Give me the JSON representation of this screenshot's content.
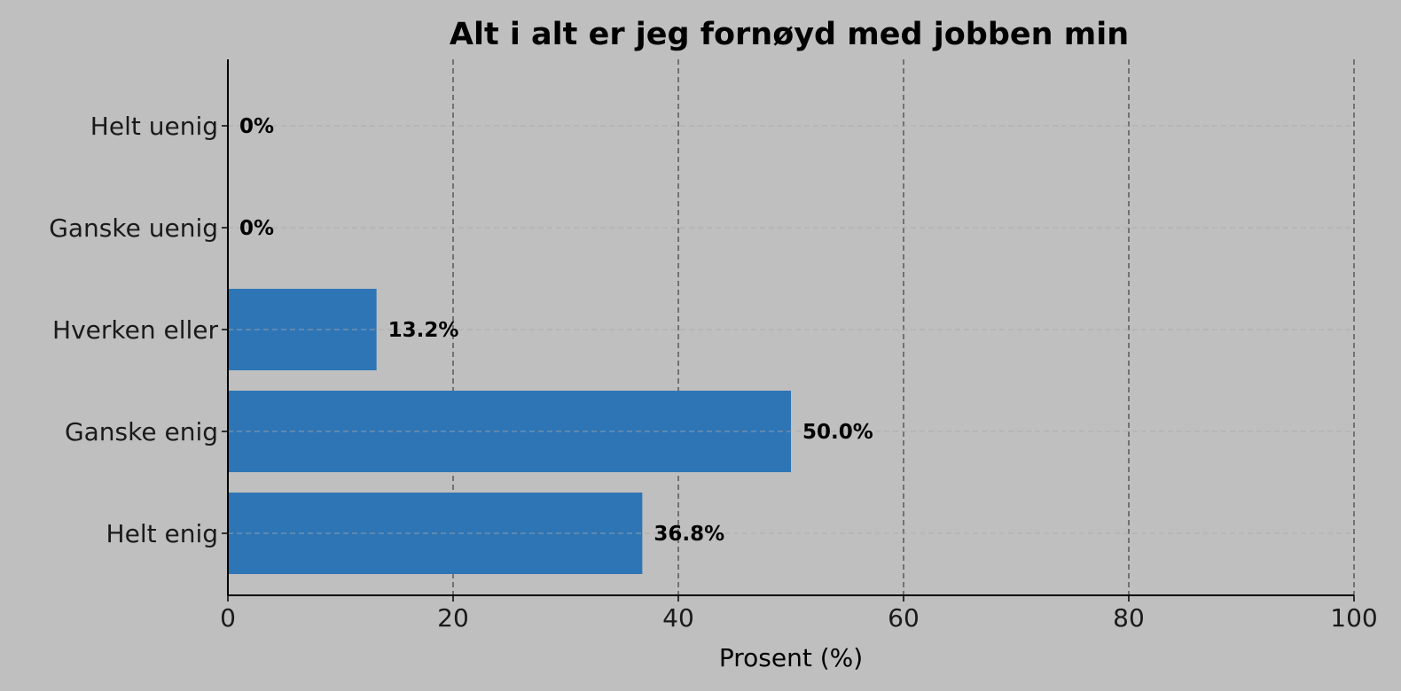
{
  "chart_data": {
    "type": "bar",
    "orientation": "horizontal",
    "title": "Alt i alt er jeg fornøyd med jobben min",
    "xlabel": "Prosent (%)",
    "ylabel": "",
    "xlim": [
      0,
      100
    ],
    "xticks": [
      0,
      20,
      40,
      60,
      80,
      100
    ],
    "categories": [
      "Helt uenig",
      "Ganske uenig",
      "Hverken eller",
      "Ganske enig",
      "Helt enig"
    ],
    "values": [
      0,
      0,
      13.2,
      50.0,
      36.8
    ],
    "data_labels": [
      "0%",
      "0%",
      "13.2%",
      "50.0%",
      "36.8%"
    ],
    "grid": true,
    "colors": {
      "bar": "#2e75b6",
      "background": "#bfbfbf",
      "grid": "#404040"
    }
  }
}
